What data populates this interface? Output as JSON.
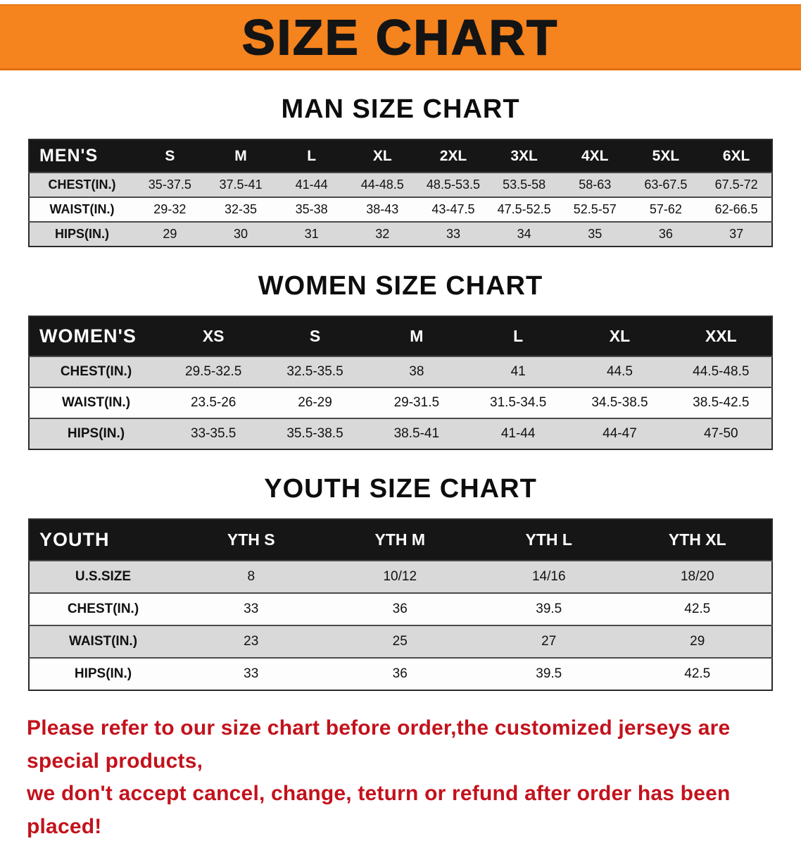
{
  "banner": {
    "title": "SIZE CHART",
    "bg_color": "#f5831e"
  },
  "colors": {
    "header_row_bg": "#161616",
    "stripe_row_bg": "#d9d9d9",
    "footer_text": "#c3121c"
  },
  "sections": [
    {
      "heading": "MAN SIZE CHART",
      "label": "MEN'S",
      "columns": [
        "S",
        "M",
        "L",
        "XL",
        "2XL",
        "3XL",
        "4XL",
        "5XL",
        "6XL"
      ],
      "rows": [
        {
          "label": "CHEST(IN.)",
          "values": [
            "35-37.5",
            "37.5-41",
            "41-44",
            "44-48.5",
            "48.5-53.5",
            "53.5-58",
            "58-63",
            "63-67.5",
            "67.5-72"
          ]
        },
        {
          "label": "WAIST(IN.)",
          "values": [
            "29-32",
            "32-35",
            "35-38",
            "38-43",
            "43-47.5",
            "47.5-52.5",
            "52.5-57",
            "57-62",
            "62-66.5"
          ]
        },
        {
          "label": "HIPS(IN.)",
          "values": [
            "29",
            "30",
            "31",
            "32",
            "33",
            "34",
            "35",
            "36",
            "37"
          ]
        }
      ]
    },
    {
      "heading": "WOMEN SIZE CHART",
      "label": "WOMEN'S",
      "columns": [
        "XS",
        "S",
        "M",
        "L",
        "XL",
        "XXL"
      ],
      "rows": [
        {
          "label": "CHEST(IN.)",
          "values": [
            "29.5-32.5",
            "32.5-35.5",
            "38",
            "41",
            "44.5",
            "44.5-48.5"
          ]
        },
        {
          "label": "WAIST(IN.)",
          "values": [
            "23.5-26",
            "26-29",
            "29-31.5",
            "31.5-34.5",
            "34.5-38.5",
            "38.5-42.5"
          ]
        },
        {
          "label": "HIPS(IN.)",
          "values": [
            "33-35.5",
            "35.5-38.5",
            "38.5-41",
            "41-44",
            "44-47",
            "47-50"
          ]
        }
      ]
    },
    {
      "heading": "YOUTH SIZE CHART",
      "label": "YOUTH",
      "columns": [
        "YTH S",
        "YTH M",
        "YTH L",
        "YTH XL"
      ],
      "rows": [
        {
          "label": "U.S.SIZE",
          "values": [
            "8",
            "10/12",
            "14/16",
            "18/20"
          ]
        },
        {
          "label": "CHEST(IN.)",
          "values": [
            "33",
            "36",
            "39.5",
            "42.5"
          ]
        },
        {
          "label": "WAIST(IN.)",
          "values": [
            "23",
            "25",
            "27",
            "29"
          ]
        },
        {
          "label": "HIPS(IN.)",
          "values": [
            "33",
            "36",
            "39.5",
            "42.5"
          ]
        }
      ]
    }
  ],
  "footer": {
    "line1": "Please refer to our size chart before order,the customized jerseys are special products,",
    "line2": "we don't accept cancel, change, teturn or refund after order has been placed!"
  }
}
